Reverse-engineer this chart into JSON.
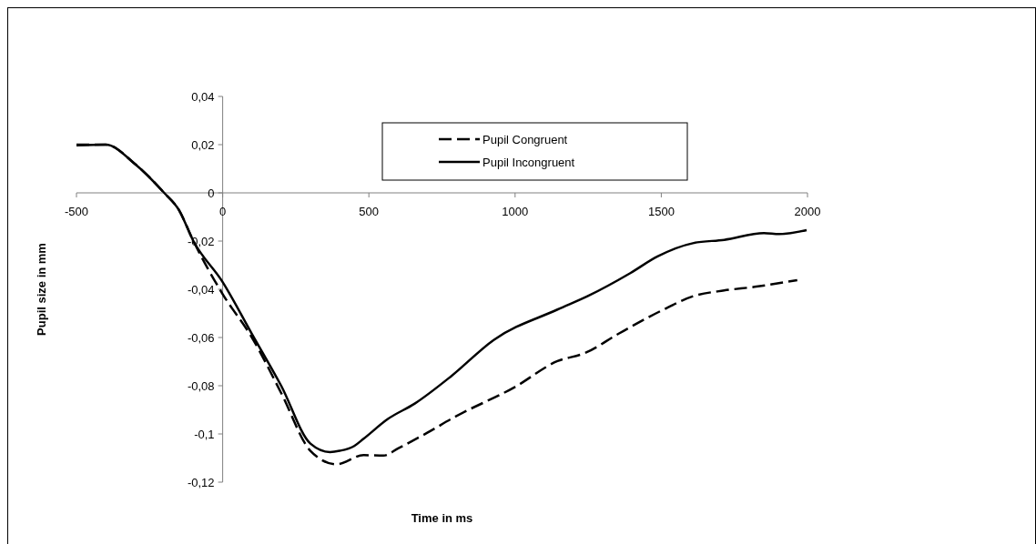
{
  "chart_data": {
    "type": "line",
    "xlabel": "Time in ms",
    "ylabel": "Pupil size in mm",
    "xlim": [
      -500,
      2000
    ],
    "xticks": [
      -500,
      0,
      500,
      1000,
      1500,
      2000
    ],
    "ylim": [
      -0.12,
      0.04
    ],
    "yticks": [
      {
        "value": -0.12,
        "label": "-0,12"
      },
      {
        "value": -0.1,
        "label": "-0,1"
      },
      {
        "value": -0.08,
        "label": "-0,08"
      },
      {
        "value": -0.06,
        "label": "-0,06"
      },
      {
        "value": -0.04,
        "label": "-0,04"
      },
      {
        "value": -0.02,
        "label": "-0,02"
      },
      {
        "value": 0,
        "label": "0"
      },
      {
        "value": 0.02,
        "label": "0,02"
      },
      {
        "value": 0.04,
        "label": "0,04"
      }
    ],
    "grid": false,
    "legend": "top",
    "series": [
      {
        "name": "Pupil Congruent",
        "color": "#000000",
        "line_style": "dashed",
        "x": [
          -500,
          -400,
          -300,
          -200,
          -150,
          -100,
          0,
          100,
          200,
          300,
          389,
          482,
          550,
          600,
          700,
          793,
          1000,
          1145,
          1238,
          1353,
          1498,
          1611,
          1715,
          1819,
          1965
        ],
        "values": [
          0.02,
          0.02,
          0.012,
          0,
          -0.007,
          -0.02,
          -0.042,
          -0.06,
          -0.083,
          -0.107,
          -0.1126,
          -0.1088,
          -0.109,
          -0.106,
          -0.0995,
          -0.093,
          -0.0805,
          -0.0698,
          -0.0665,
          -0.0585,
          -0.049,
          -0.0428,
          -0.0405,
          -0.039,
          -0.0362
        ]
      },
      {
        "name": "Pupil Incongruent",
        "color": "#000000",
        "line_style": "solid",
        "x": [
          -500,
          -400,
          -300,
          -200,
          -150,
          -100,
          0,
          100,
          200,
          300,
          367,
          400,
          450,
          482,
          565,
          657,
          781,
          927,
          1145,
          1249,
          1394,
          1487,
          1611,
          1715,
          1851,
          1903,
          1997
        ],
        "values": [
          0.0197,
          0.02,
          0.012,
          0,
          -0.007,
          -0.02,
          -0.037,
          -0.0585,
          -0.08,
          -0.104,
          -0.1075,
          -0.107,
          -0.105,
          -0.102,
          -0.0938,
          -0.0874,
          -0.0761,
          -0.061,
          -0.0484,
          -0.0428,
          -0.0333,
          -0.0264,
          -0.0208,
          -0.0195,
          -0.0167,
          -0.0171,
          -0.0155
        ]
      }
    ]
  }
}
